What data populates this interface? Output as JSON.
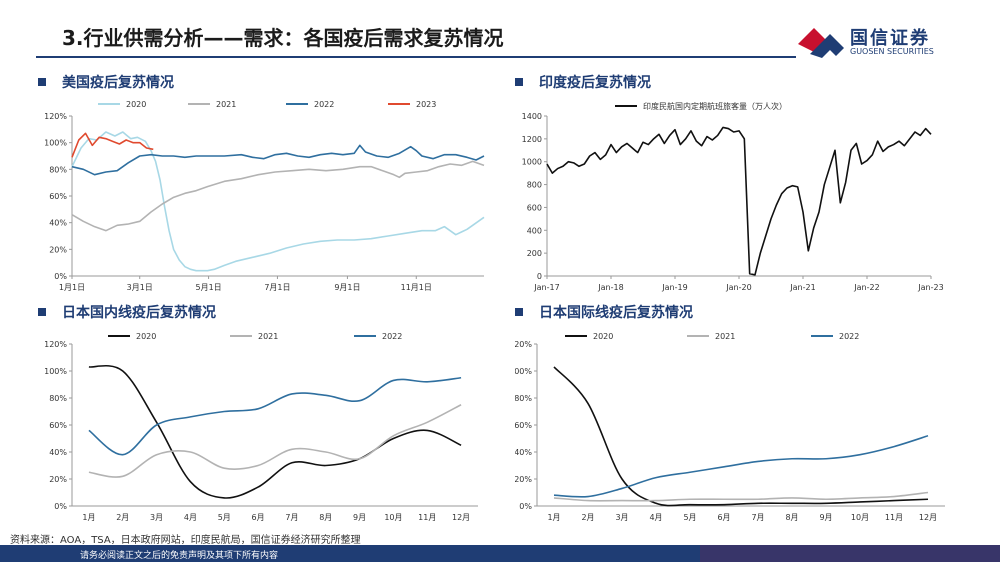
{
  "header": {
    "title": "3.行业供需分析——需求：各国疫后需求复苏情况",
    "brand_cn": "国信证券",
    "brand_en": "GUOSEN SECURITIES"
  },
  "colors": {
    "brand": "#1f3d74",
    "brand_red": "#c8102e"
  },
  "footer": {
    "source": "资料来源：AOA，TSA，日本政府网站，印度民航局，国信证券经济研究所整理",
    "disclaimer": "请务必阅读正文之后的免责声明及其项下所有内容"
  },
  "chart_data": [
    {
      "id": "us",
      "type": "line",
      "title": "美国疫后复苏情况",
      "x_axis": "day",
      "xlim": [
        0,
        365
      ],
      "ylim": [
        0,
        120
      ],
      "yticks": [
        "0%",
        "20%",
        "40%",
        "60%",
        "80%",
        "100%",
        "120%"
      ],
      "xtick_labels": [
        "1月1日",
        "3月1日",
        "5月1日",
        "7月1日",
        "9月1日",
        "11月1日"
      ],
      "xtick_values": [
        0,
        60,
        121,
        182,
        244,
        305
      ],
      "legend_position": "top",
      "series": [
        {
          "name": "2020",
          "color": "#a8d8e6",
          "x": [
            0,
            8,
            15,
            22,
            30,
            38,
            45,
            52,
            58,
            65,
            70,
            74,
            78,
            82,
            86,
            90,
            95,
            100,
            105,
            110,
            115,
            120,
            126,
            135,
            145,
            160,
            175,
            190,
            205,
            220,
            235,
            250,
            265,
            280,
            295,
            310,
            322,
            330,
            335,
            340,
            345,
            350,
            355,
            360,
            365
          ],
          "y": [
            82,
            96,
            103,
            102,
            108,
            105,
            108,
            103,
            104,
            101,
            94,
            86,
            72,
            52,
            34,
            20,
            12,
            7,
            5,
            4,
            4,
            4,
            5,
            8,
            11,
            14,
            17,
            21,
            24,
            26,
            27,
            27,
            28,
            30,
            32,
            34,
            34,
            37,
            34,
            31,
            33,
            35,
            38,
            41,
            44
          ]
        },
        {
          "name": "2021",
          "color": "#b3b3b3",
          "x": [
            0,
            10,
            20,
            30,
            40,
            50,
            60,
            70,
            80,
            90,
            100,
            110,
            120,
            135,
            150,
            165,
            180,
            195,
            210,
            225,
            240,
            255,
            265,
            275,
            285,
            290,
            295,
            305,
            315,
            325,
            335,
            345,
            355,
            365
          ],
          "y": [
            46,
            41,
            37,
            34,
            38,
            39,
            41,
            48,
            54,
            59,
            62,
            64,
            67,
            71,
            73,
            76,
            78,
            79,
            80,
            79,
            80,
            82,
            82,
            79,
            76,
            74,
            77,
            78,
            79,
            82,
            84,
            83,
            86,
            83
          ]
        },
        {
          "name": "2022",
          "color": "#2f6f9f",
          "x": [
            0,
            10,
            20,
            30,
            40,
            50,
            60,
            70,
            80,
            90,
            100,
            110,
            120,
            135,
            150,
            160,
            170,
            180,
            190,
            200,
            210,
            220,
            230,
            240,
            250,
            255,
            260,
            270,
            280,
            290,
            300,
            305,
            310,
            320,
            330,
            340,
            350,
            358,
            365
          ],
          "y": [
            82,
            80,
            76,
            78,
            79,
            85,
            90,
            91,
            90,
            90,
            89,
            90,
            90,
            90,
            91,
            89,
            88,
            91,
            92,
            90,
            89,
            91,
            92,
            91,
            92,
            98,
            93,
            90,
            89,
            92,
            97,
            94,
            90,
            88,
            91,
            91,
            89,
            87,
            90
          ]
        },
        {
          "name": "2023",
          "color": "#e04a2f",
          "x": [
            0,
            6,
            12,
            18,
            24,
            30,
            36,
            42,
            48,
            54,
            60,
            66,
            72
          ],
          "y": [
            89,
            102,
            107,
            98,
            104,
            103,
            101,
            99,
            102,
            100,
            100,
            96,
            95
          ]
        }
      ]
    },
    {
      "id": "india",
      "type": "line",
      "title": "印度疫后复苏情况",
      "x_axis": "month_index_from_Jan-17",
      "xlim": [
        0,
        72
      ],
      "ylim": [
        0,
        1400
      ],
      "yticks": [
        "0",
        "200",
        "400",
        "600",
        "800",
        "1000",
        "1200",
        "1400"
      ],
      "xtick_labels": [
        "Jan-17",
        "Jan-18",
        "Jan-19",
        "Jan-20",
        "Jan-21",
        "Jan-22",
        "Jan-23"
      ],
      "xtick_values": [
        0,
        12,
        24,
        36,
        48,
        60,
        72
      ],
      "legend_position": "top",
      "series": [
        {
          "name": "印度民航国内定期航班旅客量（万人次）",
          "color": "#111111",
          "x": [
            0,
            1,
            2,
            3,
            4,
            5,
            6,
            7,
            8,
            9,
            10,
            11,
            12,
            13,
            14,
            15,
            16,
            17,
            18,
            19,
            20,
            21,
            22,
            23,
            24,
            25,
            26,
            27,
            28,
            29,
            30,
            31,
            32,
            33,
            34,
            35,
            36,
            37,
            38,
            39,
            40,
            41,
            42,
            43,
            44,
            45,
            46,
            47,
            48,
            49,
            50,
            51,
            52,
            53,
            54,
            55,
            56,
            57,
            58,
            59,
            60,
            61,
            62,
            63,
            64,
            65,
            66,
            67,
            68,
            69,
            70,
            71,
            72
          ],
          "y": [
            980,
            900,
            940,
            960,
            1000,
            990,
            960,
            980,
            1050,
            1080,
            1020,
            1060,
            1150,
            1080,
            1130,
            1160,
            1120,
            1080,
            1170,
            1150,
            1200,
            1240,
            1160,
            1230,
            1280,
            1150,
            1200,
            1270,
            1180,
            1140,
            1220,
            1190,
            1230,
            1300,
            1290,
            1260,
            1270,
            1200,
            20,
            10,
            200,
            350,
            500,
            620,
            720,
            770,
            790,
            780,
            560,
            220,
            420,
            560,
            800,
            950,
            1100,
            640,
            820,
            1100,
            1160,
            980,
            1010,
            1060,
            1180,
            1090,
            1130,
            1150,
            1180,
            1140,
            1200,
            1260,
            1230,
            1290,
            1240
          ]
        }
      ]
    },
    {
      "id": "japan-domestic",
      "type": "line",
      "title": "日本国内线疫后复苏情况",
      "ylim": [
        0,
        120
      ],
      "yticks": [
        "0%",
        "20%",
        "40%",
        "60%",
        "80%",
        "100%",
        "120%"
      ],
      "categories": [
        "1月",
        "2月",
        "3月",
        "4月",
        "5月",
        "6月",
        "7月",
        "8月",
        "9月",
        "10月",
        "11月",
        "12月"
      ],
      "legend_position": "top",
      "series": [
        {
          "name": "2020",
          "color": "#111111",
          "values": [
            103,
            100,
            62,
            18,
            6,
            14,
            32,
            30,
            35,
            50,
            56,
            45
          ]
        },
        {
          "name": "2021",
          "color": "#b3b3b3",
          "values": [
            25,
            22,
            38,
            40,
            28,
            30,
            42,
            40,
            35,
            52,
            62,
            75
          ]
        },
        {
          "name": "2022",
          "color": "#2f6f9f",
          "values": [
            56,
            38,
            60,
            66,
            70,
            72,
            83,
            82,
            78,
            93,
            92,
            95
          ]
        }
      ]
    },
    {
      "id": "japan-international",
      "type": "line",
      "title": "日本国际线疫后复苏情况",
      "ylim": [
        0,
        120
      ],
      "yticks": [
        "0%",
        "20%",
        "40%",
        "60%",
        "80%",
        "100%",
        "120%"
      ],
      "categories": [
        "1月",
        "2月",
        "3月",
        "4月",
        "5月",
        "6月",
        "7月",
        "8月",
        "9月",
        "10月",
        "11月",
        "12月"
      ],
      "legend_position": "top",
      "series": [
        {
          "name": "2020",
          "color": "#111111",
          "values": [
            103,
            76,
            20,
            2,
            1,
            1,
            2,
            2,
            2,
            3,
            4,
            5
          ]
        },
        {
          "name": "2021",
          "color": "#b3b3b3",
          "values": [
            6,
            4,
            4,
            4,
            5,
            5,
            5,
            6,
            5,
            6,
            7,
            10
          ]
        },
        {
          "name": "2022",
          "color": "#2f6f9f",
          "values": [
            8,
            7,
            13,
            21,
            25,
            29,
            33,
            35,
            35,
            38,
            44,
            52
          ]
        }
      ]
    }
  ]
}
